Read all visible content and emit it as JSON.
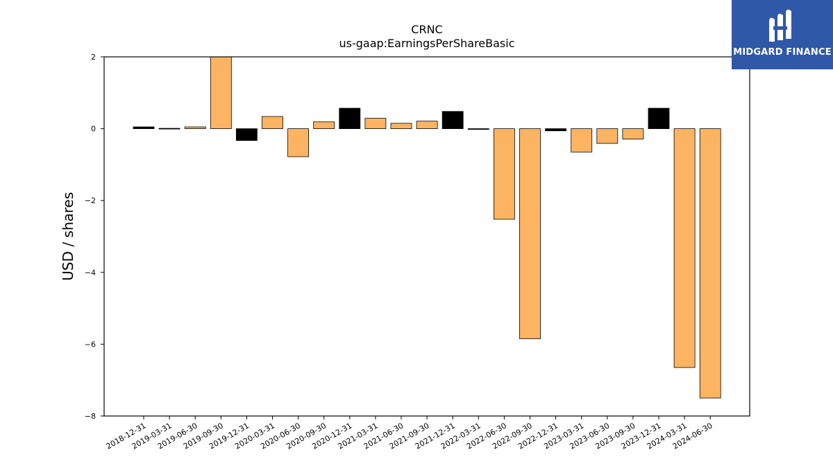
{
  "chart_data": {
    "type": "bar",
    "title": "CRNC",
    "subtitle": "us-gaap:EarningsPerShareBasic",
    "xlabel": "",
    "ylabel": "USD / shares",
    "ylim": [
      -8,
      2
    ],
    "yticks": [
      2,
      0,
      -2,
      -4,
      -6,
      -8
    ],
    "ytick_labels": [
      "2",
      "0",
      "−2",
      "−4",
      "−6",
      "−8"
    ],
    "grid": false,
    "legend": "none",
    "colors": {
      "quarter": "#fdb462",
      "annual": "#000000",
      "edge": "#000000"
    },
    "categories": [
      "2018-12-31",
      "2019-03-31",
      "2019-06-30",
      "2019-09-30",
      "2019-12-31",
      "2020-03-31",
      "2020-06-30",
      "2020-09-30",
      "2020-12-31",
      "2021-03-31",
      "2021-06-30",
      "2021-09-30",
      "2021-12-31",
      "2022-03-31",
      "2022-06-30",
      "2022-09-30",
      "2022-12-31",
      "2023-03-31",
      "2023-06-30",
      "2023-09-30",
      "2023-12-31",
      "2024-03-31",
      "2024-06-30"
    ],
    "values": [
      0.05,
      0.01,
      0.05,
      2.2,
      -0.33,
      0.34,
      -0.78,
      0.19,
      0.57,
      0.29,
      0.15,
      0.21,
      0.48,
      -0.02,
      -2.52,
      -5.85,
      -0.06,
      -0.65,
      -0.41,
      -0.29,
      0.57,
      -6.65,
      -7.5
    ],
    "bar_kind": [
      "annual",
      "annual",
      "quarter",
      "quarter",
      "annual",
      "quarter",
      "quarter",
      "quarter",
      "annual",
      "quarter",
      "quarter",
      "quarter",
      "annual",
      "annual",
      "quarter",
      "quarter",
      "annual",
      "quarter",
      "quarter",
      "quarter",
      "annual",
      "quarter",
      "quarter"
    ]
  },
  "logo": {
    "text": "MIDGARD FINANCE",
    "color": "#2f58a8"
  }
}
